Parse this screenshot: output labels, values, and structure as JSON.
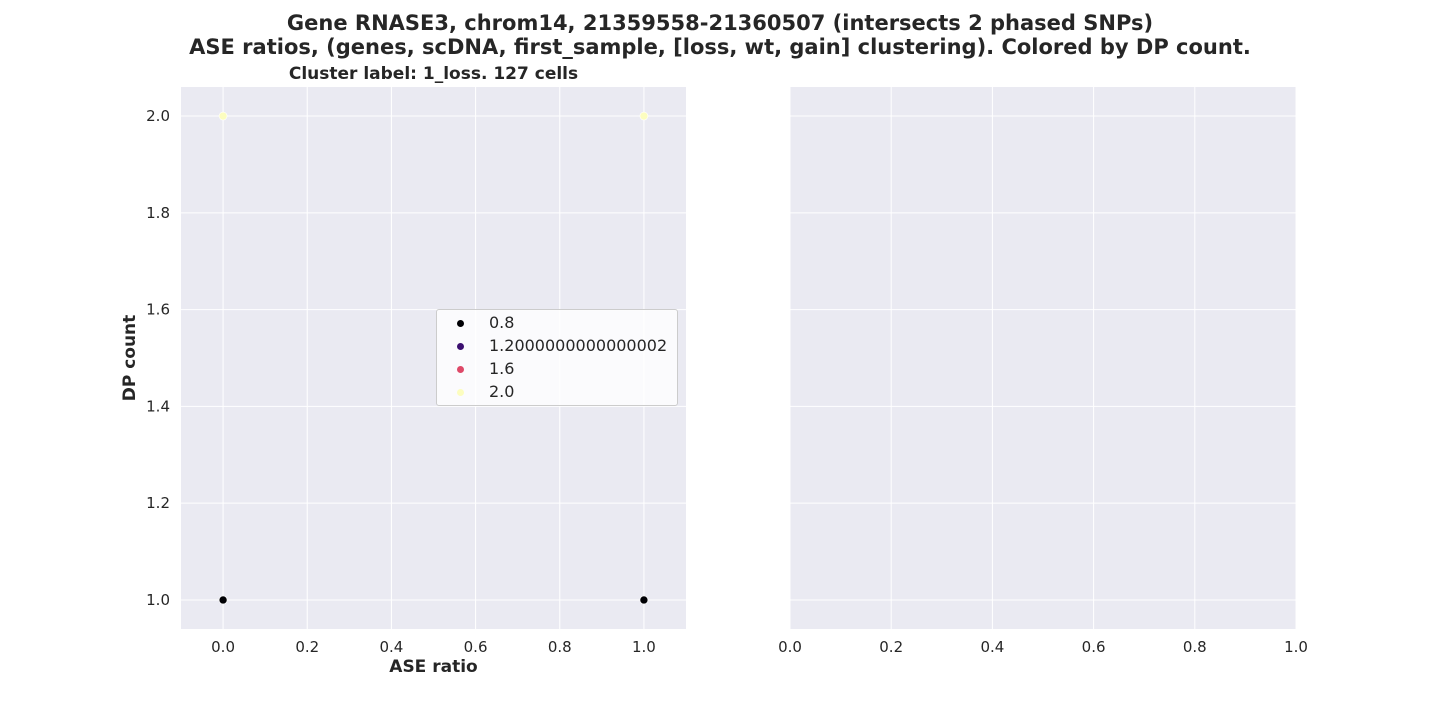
{
  "title": "Gene RNASE3, chrom14, 21359558-21360507 (intersects 2 phased SNPs)",
  "title2": "ASE ratios, (genes, scDNA, first_sample, [loss, wt, gain] clustering). Colored by DP count.",
  "chart_data": [
    {
      "type": "scatter",
      "title": "Cluster label: 1_loss. 127 cells",
      "xlabel": "ASE ratio",
      "ylabel": "DP count",
      "xlim": [
        -0.1,
        1.1
      ],
      "ylim": [
        0.94,
        2.06
      ],
      "xticks": [
        "0.0",
        "0.2",
        "0.4",
        "0.6",
        "0.8",
        "1.0"
      ],
      "yticks": [
        "1.0",
        "1.2",
        "1.4",
        "1.6",
        "1.8",
        "2.0"
      ],
      "grid": true,
      "legend_position": "center-right",
      "legend": [
        {
          "label": "0.8",
          "color": "#000004"
        },
        {
          "label": "1.2000000000000002",
          "color": "#3b0f70"
        },
        {
          "label": "1.6",
          "color": "#de4968"
        },
        {
          "label": "2.0",
          "color": "#fcfdbf"
        }
      ],
      "points": [
        {
          "x": 0.0,
          "y": 1.0,
          "color": "#000004"
        },
        {
          "x": 1.0,
          "y": 1.0,
          "color": "#000004"
        },
        {
          "x": 0.0,
          "y": 2.0,
          "color": "#fcfdbf"
        },
        {
          "x": 1.0,
          "y": 2.0,
          "color": "#fcfdbf"
        }
      ]
    },
    {
      "type": "scatter",
      "title": "",
      "xlabel": "",
      "ylabel": "",
      "xlim": [
        0.0,
        1.0
      ],
      "ylim": [
        0.94,
        2.06
      ],
      "xticks": [
        "0.0",
        "0.2",
        "0.4",
        "0.6",
        "0.8",
        "1.0"
      ],
      "yticks": [],
      "grid": true,
      "points": []
    }
  ],
  "colors": {
    "plot_bg": "#eaeaf2",
    "grid": "#ffffff",
    "text": "#262626"
  }
}
